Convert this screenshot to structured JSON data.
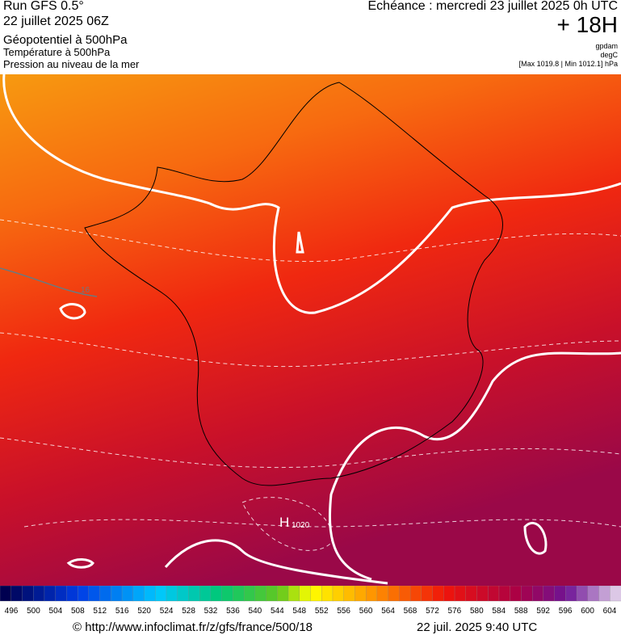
{
  "header": {
    "run": "Run GFS 0.5°",
    "date": "22 juillet 2025 06Z",
    "field1": "Géopotentiel à 500hPa",
    "field2": "Température à 500hPa",
    "field3": "Pression au niveau de la mer",
    "echeance": "Echéance : mercredi 23 juillet 2025 0h UTC",
    "lead": "+ 18H",
    "unit1": "gpdam",
    "unit2": "degC",
    "minmax": "[Max 1019.8 | Min 1012.1] hPa"
  },
  "map": {
    "labels": {
      "isotherm": "16",
      "high": "H",
      "high_value": "1020"
    }
  },
  "colorbar": {
    "labels": [
      496,
      500,
      504,
      508,
      512,
      516,
      520,
      524,
      528,
      532,
      536,
      540,
      544,
      548,
      552,
      556,
      560,
      564,
      568,
      572,
      576,
      580,
      584,
      588,
      592,
      596,
      600,
      604
    ]
  },
  "footer": {
    "source": "© http://www.infoclimat.fr/z/gfs/france/500/18",
    "timestamp": "22 juil. 2025  9:40 UTC"
  }
}
